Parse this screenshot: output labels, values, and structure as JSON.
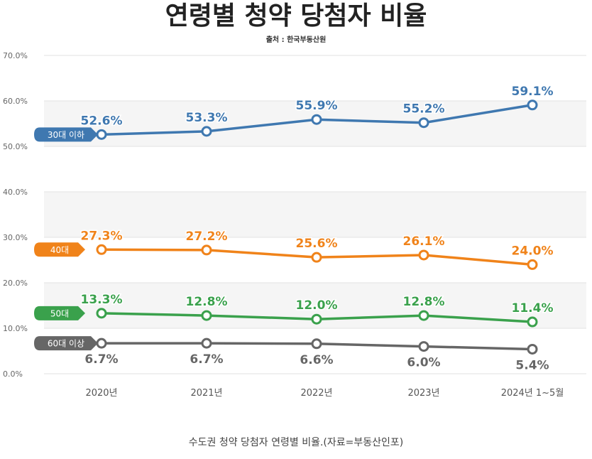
{
  "title": "연령별 청약 당첨자 비율",
  "source": "출처 : 한국부동산원",
  "caption": "수도권 청약 당첨자 연령별 비율.(자료=부동산인포)",
  "chart_data": {
    "type": "line",
    "title": "연령별 청약 당첨자 비율",
    "categories": [
      "2020년",
      "2021년",
      "2022년",
      "2023년",
      "2024년 1~5월"
    ],
    "ylim": [
      0,
      70
    ],
    "yticks": [
      "0.0%",
      "10.0%",
      "20.0%",
      "30.0%",
      "40.0%",
      "50.0%",
      "60.0%",
      "70.0%"
    ],
    "grid": true,
    "series": [
      {
        "name": "30대 이하",
        "color": "#3f78b0",
        "values": [
          52.6,
          53.3,
          55.9,
          55.2,
          59.1
        ],
        "labels": [
          "52.6%",
          "53.3%",
          "55.9%",
          "55.2%",
          "59.1%"
        ],
        "label_position": "above"
      },
      {
        "name": "40대",
        "color": "#f0831a",
        "values": [
          27.3,
          27.2,
          25.6,
          26.1,
          24.0
        ],
        "labels": [
          "27.3%",
          "27.2%",
          "25.6%",
          "26.1%",
          "24.0%"
        ],
        "label_position": "above"
      },
      {
        "name": "50대",
        "color": "#3aa14c",
        "values": [
          13.3,
          12.8,
          12.0,
          12.8,
          11.4
        ],
        "labels": [
          "13.3%",
          "12.8%",
          "12.0%",
          "12.8%",
          "11.4%"
        ],
        "label_position": "above"
      },
      {
        "name": "60대 이상",
        "color": "#666666",
        "values": [
          6.7,
          6.7,
          6.6,
          6.0,
          5.4
        ],
        "labels": [
          "6.7%",
          "6.7%",
          "6.6%",
          "6.0%",
          "5.4%"
        ],
        "label_position": "below"
      }
    ]
  }
}
